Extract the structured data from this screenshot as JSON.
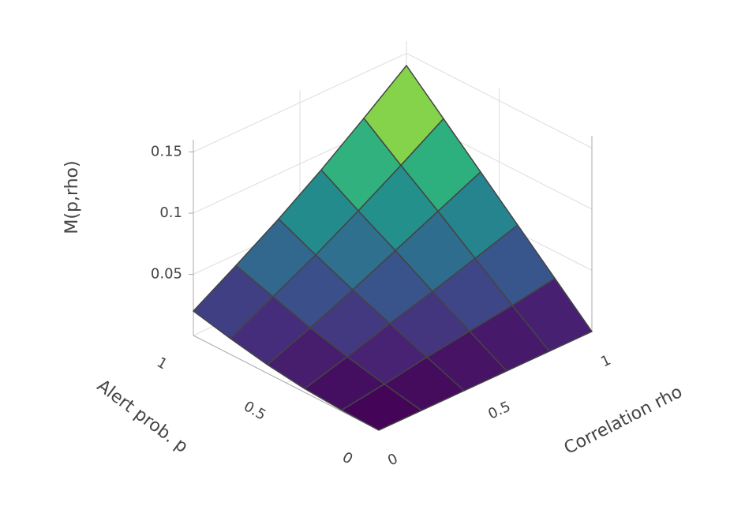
{
  "chart_data": {
    "type": "surface",
    "x_label": "Correlation rho",
    "y_label": "Alert prob. p",
    "z_label": "M(p,rho)",
    "x": [
      0,
      0.2,
      0.4,
      0.6,
      0.8,
      1
    ],
    "y": [
      0,
      0.2,
      0.4,
      0.6,
      0.8,
      1
    ],
    "z": [
      [
        0,
        0,
        0,
        0,
        0,
        0
      ],
      [
        0.001,
        0.006,
        0.012,
        0.017,
        0.022,
        0.028
      ],
      [
        0.003,
        0.013,
        0.024,
        0.034,
        0.045,
        0.056
      ],
      [
        0.007,
        0.021,
        0.036,
        0.052,
        0.068,
        0.084
      ],
      [
        0.013,
        0.031,
        0.049,
        0.069,
        0.09,
        0.112
      ],
      [
        0.02,
        0.041,
        0.063,
        0.087,
        0.113,
        0.14
      ]
    ],
    "xlim": [
      0,
      1
    ],
    "ylim": [
      0,
      1
    ],
    "zlim": [
      0,
      0.16
    ],
    "xticks": [
      0,
      0.5,
      1
    ],
    "yticks": [
      0,
      0.5,
      1
    ],
    "zticks": [
      0.05,
      0.1,
      0.15
    ],
    "colorscale": [
      "#440154",
      "#482878",
      "#3e4989",
      "#31688e",
      "#26828e",
      "#1f9e89",
      "#35b779",
      "#6ece58",
      "#b5de2b",
      "#fde725"
    ],
    "grid": true
  }
}
